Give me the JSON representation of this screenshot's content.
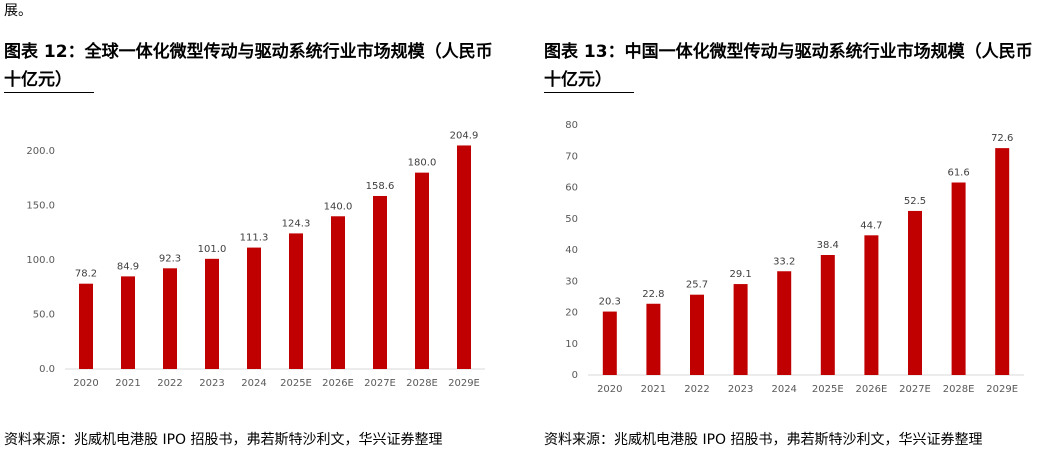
{
  "intro_text": "展。",
  "chart_data": [
    {
      "type": "bar",
      "title": "图表 12：全球一体化微型传动与驱动系统行业市场规模（人民币十亿元）",
      "categories": [
        "2020",
        "2021",
        "2022",
        "2023",
        "2024",
        "2025E",
        "2026E",
        "2027E",
        "2028E",
        "2029E"
      ],
      "values": [
        78.2,
        84.9,
        92.3,
        101.0,
        111.3,
        124.3,
        140.0,
        158.6,
        180.0,
        204.9
      ],
      "value_labels": [
        "78.2",
        "84.9",
        "92.3",
        "101.0",
        "111.3",
        "124.3",
        "140.0",
        "158.6",
        "180.0",
        "204.9"
      ],
      "color": "#c00000",
      "ylim": [
        0,
        220
      ],
      "yticks": [
        {
          "value": 0,
          "label": "0.0"
        },
        {
          "value": 50,
          "label": "50.0"
        },
        {
          "value": 100,
          "label": "100.0"
        },
        {
          "value": 150,
          "label": "150.0"
        },
        {
          "value": 200,
          "label": "200.0"
        }
      ],
      "grid": false,
      "source": "资料来源：兆威机电港股 IPO 招股书，弗若斯特沙利文，华兴证券整理"
    },
    {
      "type": "bar",
      "title": "图表 13：中国一体化微型传动与驱动系统行业市场规模（人民币十亿元）",
      "categories": [
        "2020",
        "2021",
        "2022",
        "2023",
        "2024",
        "2025E",
        "2026E",
        "2027E",
        "2028E",
        "2029E"
      ],
      "values": [
        20.3,
        22.8,
        25.7,
        29.1,
        33.2,
        38.4,
        44.7,
        52.5,
        61.6,
        72.6
      ],
      "color": "#c00000",
      "ylim": [
        0,
        80
      ],
      "yticks": [
        0,
        10,
        20,
        30,
        40,
        50,
        60,
        70,
        80
      ],
      "grid": false,
      "source": "资料来源：兆威机电港股 IPO 招股书，弗若斯特沙利文，华兴证券整理"
    }
  ]
}
